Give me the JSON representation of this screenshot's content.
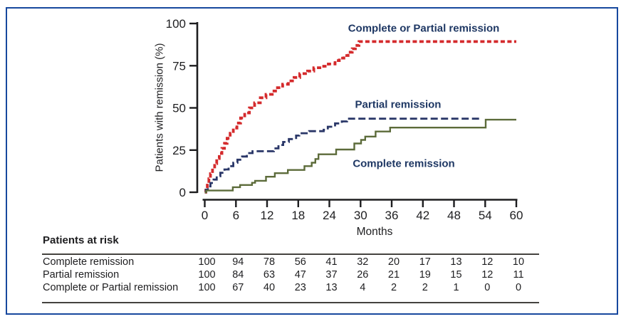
{
  "colors": {
    "frame_border": "#17489e",
    "axis": "#1d1d1f",
    "text": "#1e1e20",
    "legend_text": "#1f3864",
    "table_rule": "#45433f",
    "red_series": "#d42a2c",
    "navy_series": "#2a3768",
    "olive_series": "#5c6b3a"
  },
  "chart_data": {
    "type": "line",
    "subtype": "kaplan-meier-cumulative-incidence-steps",
    "title": "",
    "xlabel": "Months",
    "ylabel": "Patients with remission (%)",
    "xlim": [
      0,
      60
    ],
    "ylim": [
      0,
      100
    ],
    "x_ticks": [
      0,
      6,
      12,
      18,
      24,
      30,
      36,
      42,
      48,
      54,
      60
    ],
    "y_ticks": [
      0,
      25,
      50,
      75,
      100
    ],
    "grid": false,
    "legend_position": "inline-labels-near-curves",
    "series": [
      {
        "name": "Complete or Partial remission",
        "color": "#d42a2c",
        "line_style": "dashed",
        "dash": "6 3.5",
        "width": 3.8,
        "points": [
          [
            0,
            0
          ],
          [
            0.2,
            2
          ],
          [
            0.5,
            5
          ],
          [
            0.8,
            8
          ],
          [
            1.1,
            11
          ],
          [
            1.5,
            14
          ],
          [
            1.9,
            17
          ],
          [
            2.3,
            20
          ],
          [
            2.8,
            23
          ],
          [
            3.3,
            26
          ],
          [
            3.8,
            29
          ],
          [
            4.3,
            32
          ],
          [
            4.9,
            35
          ],
          [
            5.5,
            38
          ],
          [
            6.2,
            41
          ],
          [
            6.9,
            44
          ],
          [
            7.7,
            47
          ],
          [
            8.6,
            50
          ],
          [
            9.6,
            53
          ],
          [
            10.7,
            56
          ],
          [
            11.8,
            58
          ],
          [
            13,
            60
          ],
          [
            14,
            62
          ],
          [
            15,
            64
          ],
          [
            16.1,
            66
          ],
          [
            17.2,
            68
          ],
          [
            18.3,
            70.3
          ],
          [
            19.8,
            71.8
          ],
          [
            21,
            73.8
          ],
          [
            22.9,
            74.7
          ],
          [
            23.8,
            76
          ],
          [
            25.1,
            78
          ],
          [
            25.9,
            79.5
          ],
          [
            26.8,
            81
          ],
          [
            27.6,
            83
          ],
          [
            28.4,
            85
          ],
          [
            29,
            87
          ],
          [
            29.7,
            89.3
          ],
          [
            60,
            89.3
          ]
        ]
      },
      {
        "name": "Partial remission",
        "color": "#2a3768",
        "line_style": "dashed",
        "dash": "10 4.5",
        "width": 2.8,
        "points": [
          [
            0,
            0
          ],
          [
            0.2,
            1.5
          ],
          [
            0.6,
            3.5
          ],
          [
            1.1,
            5.5
          ],
          [
            1.7,
            7.5
          ],
          [
            2.3,
            9.5
          ],
          [
            3,
            11.5
          ],
          [
            3.8,
            13.5
          ],
          [
            4.6,
            15.5
          ],
          [
            5.5,
            17.5
          ],
          [
            6.3,
            19.3
          ],
          [
            7.2,
            21.2
          ],
          [
            8.1,
            23.2
          ],
          [
            9.2,
            24.3
          ],
          [
            13.3,
            26
          ],
          [
            14.2,
            28
          ],
          [
            15.1,
            29.8
          ],
          [
            16.2,
            31.5
          ],
          [
            17.6,
            33.6
          ],
          [
            18.2,
            35
          ],
          [
            20.1,
            36.2
          ],
          [
            22.9,
            37
          ],
          [
            23.7,
            38.8
          ],
          [
            25.1,
            40.8
          ],
          [
            26.4,
            42
          ],
          [
            27.4,
            43.6
          ],
          [
            53,
            43.6
          ]
        ]
      },
      {
        "name": "Complete remission",
        "color": "#5c6b3a",
        "line_style": "solid",
        "dash": "",
        "width": 2.4,
        "points": [
          [
            0,
            0
          ],
          [
            0.3,
            1
          ],
          [
            5.4,
            3
          ],
          [
            6.8,
            4.3
          ],
          [
            9.1,
            5.6
          ],
          [
            9.7,
            6.8
          ],
          [
            11.8,
            9.2
          ],
          [
            13.5,
            11.3
          ],
          [
            16,
            13.2
          ],
          [
            19.2,
            15.5
          ],
          [
            20.6,
            17.5
          ],
          [
            21.3,
            19.7
          ],
          [
            21.9,
            22.5
          ],
          [
            25.3,
            25.3
          ],
          [
            28.8,
            28.9
          ],
          [
            30.1,
            31
          ],
          [
            30.9,
            33
          ],
          [
            32.9,
            36
          ],
          [
            35.7,
            38.3
          ],
          [
            54.1,
            43
          ],
          [
            60,
            43
          ]
        ]
      }
    ]
  },
  "risk_table": {
    "title": "Patients at risk",
    "columns": [
      0,
      6,
      12,
      18,
      24,
      30,
      36,
      42,
      48,
      54,
      60
    ],
    "rows": [
      {
        "label": "Complete remission",
        "values": [
          100,
          94,
          78,
          56,
          41,
          32,
          20,
          17,
          13,
          12,
          10
        ]
      },
      {
        "label": "Partial remission",
        "values": [
          100,
          84,
          63,
          47,
          37,
          26,
          21,
          19,
          15,
          12,
          11
        ]
      },
      {
        "label": "Complete or Partial remission",
        "values": [
          100,
          67,
          40,
          23,
          13,
          4,
          2,
          2,
          1,
          0,
          0
        ]
      }
    ]
  }
}
